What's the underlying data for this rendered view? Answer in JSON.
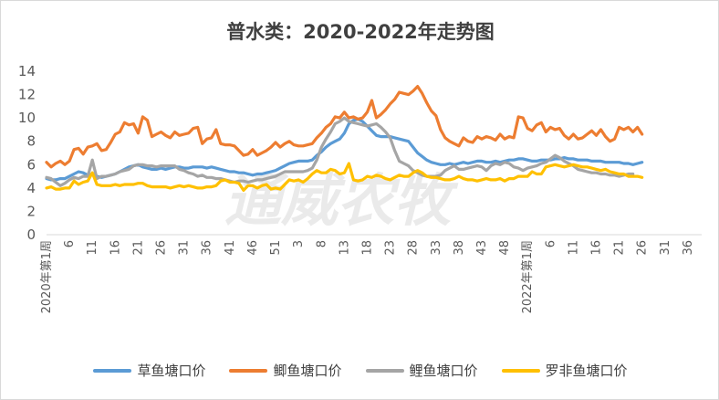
{
  "chart_data": {
    "type": "line",
    "title": "普水类：2020-2022年走势图",
    "watermark": "通威农牧",
    "xlabel": "",
    "ylabel": "",
    "ylim": [
      0,
      14
    ],
    "yticks": [
      0,
      2,
      4,
      6,
      8,
      10,
      12,
      14
    ],
    "grid": false,
    "legend": "bottom",
    "x": {
      "start_label": "2020年第1周",
      "tick_labels": [
        "2020年第1周",
        "6",
        "11",
        "16",
        "21",
        "26",
        "31",
        "36",
        "41",
        "46",
        "51",
        "3",
        "8",
        "13",
        "18",
        "23",
        "28",
        "33",
        "38",
        "43",
        "48",
        "2022年第1周",
        "6",
        "11",
        "16",
        "21",
        "26",
        "31",
        "36"
      ]
    },
    "series": [
      {
        "name": "草鱼塘口价",
        "color": "#5b9bd5",
        "values": [
          4.8,
          4.7,
          4.7,
          4.8,
          4.8,
          5.0,
          5.2,
          5.4,
          5.3,
          5.1,
          5.2,
          5.0,
          4.9,
          5.0,
          5.1,
          5.2,
          5.4,
          5.6,
          5.8,
          5.9,
          6.0,
          5.8,
          5.7,
          5.6,
          5.6,
          5.7,
          5.6,
          5.7,
          5.8,
          5.8,
          5.7,
          5.7,
          5.8,
          5.8,
          5.8,
          5.7,
          5.8,
          5.7,
          5.6,
          5.5,
          5.4,
          5.4,
          5.3,
          5.3,
          5.2,
          5.1,
          5.2,
          5.2,
          5.3,
          5.4,
          5.5,
          5.7,
          5.9,
          6.1,
          6.2,
          6.3,
          6.3,
          6.3,
          6.4,
          6.8,
          7.1,
          7.5,
          7.8,
          8.0,
          8.2,
          8.7,
          9.5,
          9.8,
          9.9,
          9.7,
          9.3,
          8.9,
          8.5,
          8.4,
          8.4,
          8.4,
          8.3,
          8.2,
          8.1,
          8.0,
          7.5,
          7.0,
          6.7,
          6.4,
          6.2,
          6.1,
          6.0,
          6.0,
          6.1,
          6.0,
          6.1,
          6.2,
          6.1,
          6.2,
          6.3,
          6.3,
          6.2,
          6.2,
          6.3,
          6.2,
          6.3,
          6.4,
          6.4,
          6.5,
          6.5,
          6.4,
          6.3,
          6.3,
          6.4,
          6.4,
          6.4,
          6.5,
          6.5,
          6.6,
          6.5,
          6.5,
          6.4,
          6.4,
          6.4,
          6.3,
          6.3,
          6.3,
          6.2,
          6.2,
          6.2,
          6.2,
          6.1,
          6.1,
          6.0,
          6.1,
          6.2
        ]
      },
      {
        "name": "鲫鱼塘口价",
        "color": "#ed7d31",
        "values": [
          6.2,
          5.8,
          6.1,
          6.3,
          6.0,
          6.3,
          7.3,
          7.4,
          6.9,
          7.5,
          7.6,
          7.8,
          7.2,
          7.3,
          7.9,
          8.6,
          8.8,
          9.6,
          9.4,
          9.5,
          8.7,
          10.1,
          9.8,
          8.4,
          8.6,
          8.8,
          8.5,
          8.3,
          8.8,
          8.5,
          8.6,
          8.7,
          9.1,
          9.2,
          7.8,
          8.2,
          8.3,
          9.0,
          7.8,
          7.7,
          7.7,
          7.6,
          7.2,
          6.8,
          6.9,
          7.3,
          6.8,
          7.0,
          7.2,
          7.5,
          7.9,
          7.5,
          7.8,
          8.0,
          7.7,
          7.6,
          7.6,
          7.7,
          7.8,
          8.3,
          8.7,
          9.2,
          9.5,
          10.1,
          10.0,
          10.5,
          10.0,
          10.1,
          9.9,
          10.0,
          10.5,
          11.5,
          10.0,
          10.3,
          10.7,
          11.2,
          11.6,
          12.2,
          12.1,
          12.0,
          12.3,
          12.7,
          12.1,
          11.3,
          10.6,
          10.2,
          9.0,
          8.3,
          8.0,
          7.8,
          7.6,
          8.3,
          8.0,
          7.9,
          8.4,
          8.2,
          8.4,
          8.3,
          8.1,
          8.6,
          8.2,
          8.4,
          8.3,
          10.1,
          10.0,
          9.1,
          8.9,
          9.4,
          9.6,
          8.8,
          9.2,
          9.0,
          9.1,
          8.5,
          8.2,
          8.6,
          8.2,
          8.3,
          8.6,
          8.9,
          8.5,
          9.0,
          8.4,
          8.0,
          8.2,
          9.2,
          9.0,
          9.2,
          8.8,
          9.2,
          8.6
        ]
      },
      {
        "name": "鲤鱼塘口价",
        "color": "#a5a5a5",
        "values": [
          4.9,
          4.8,
          4.5,
          4.2,
          4.4,
          4.7,
          4.9,
          4.8,
          5.0,
          5.0,
          6.4,
          4.8,
          5.0,
          5.0,
          5.1,
          5.2,
          5.4,
          5.5,
          5.6,
          5.9,
          6.0,
          6.0,
          5.9,
          5.9,
          5.8,
          5.9,
          5.9,
          5.9,
          5.9,
          5.6,
          5.5,
          5.3,
          5.2,
          5.0,
          5.1,
          4.9,
          4.9,
          4.8,
          4.8,
          4.7,
          4.6,
          4.5,
          4.6,
          4.6,
          4.5,
          4.6,
          4.7,
          4.7,
          4.8,
          4.9,
          5.0,
          5.2,
          5.4,
          5.4,
          5.4,
          5.4,
          5.4,
          5.5,
          5.7,
          6.4,
          7.5,
          8.2,
          8.8,
          9.5,
          9.7,
          10.0,
          9.7,
          9.6,
          9.5,
          9.4,
          9.3,
          9.4,
          9.5,
          9.2,
          8.8,
          8.3,
          7.2,
          6.3,
          6.1,
          5.9,
          5.5,
          5.3,
          5.1,
          5.0,
          5.0,
          5.0,
          5.1,
          5.5,
          5.7,
          5.9,
          5.6,
          5.6,
          5.7,
          5.8,
          5.9,
          5.8,
          5.5,
          5.9,
          6.1,
          6.0,
          6.2,
          6.1,
          5.8,
          5.7,
          5.5,
          5.7,
          5.8,
          5.9,
          6.1,
          6.2,
          6.5,
          6.8,
          6.6,
          6.3,
          6.1,
          5.9,
          5.6,
          5.5,
          5.4,
          5.3,
          5.3,
          5.2,
          5.2,
          5.1,
          5.1,
          5.0,
          5.1,
          5.2,
          5.2
        ]
      },
      {
        "name": "罗非鱼塘口价",
        "color": "#ffc000",
        "values": [
          4.0,
          4.1,
          3.9,
          3.9,
          4.0,
          4.0,
          4.6,
          4.3,
          4.5,
          4.6,
          5.3,
          4.3,
          4.2,
          4.2,
          4.2,
          4.3,
          4.2,
          4.3,
          4.3,
          4.3,
          4.4,
          4.4,
          4.2,
          4.1,
          4.1,
          4.1,
          4.1,
          4.0,
          4.1,
          4.2,
          4.1,
          4.2,
          4.1,
          4.0,
          4.0,
          4.1,
          4.1,
          4.2,
          4.6,
          4.7,
          4.5,
          4.5,
          4.4,
          3.8,
          4.2,
          4.2,
          4.0,
          4.2,
          4.3,
          3.9,
          4.0,
          3.9,
          4.3,
          4.7,
          4.6,
          4.7,
          4.5,
          4.8,
          5.2,
          5.5,
          5.3,
          5.3,
          5.6,
          5.5,
          5.2,
          5.3,
          6.1,
          4.7,
          4.6,
          4.7,
          5.0,
          4.9,
          5.1,
          5.0,
          4.8,
          4.7,
          4.9,
          5.1,
          5.0,
          5.0,
          5.3,
          5.5,
          5.3,
          5.0,
          4.9,
          4.9,
          4.8,
          4.7,
          4.7,
          4.8,
          5.0,
          4.8,
          4.7,
          4.7,
          4.6,
          4.7,
          4.8,
          4.7,
          4.7,
          4.8,
          4.6,
          4.8,
          4.8,
          5.0,
          5.0,
          5.0,
          5.4,
          5.2,
          5.2,
          5.8,
          5.9,
          6.0,
          5.9,
          5.8,
          5.9,
          6.0,
          5.9,
          5.8,
          5.8,
          5.7,
          5.6,
          5.5,
          5.6,
          5.4,
          5.3,
          5.2,
          5.2,
          5.0,
          5.0,
          5.0,
          4.9
        ]
      }
    ]
  }
}
